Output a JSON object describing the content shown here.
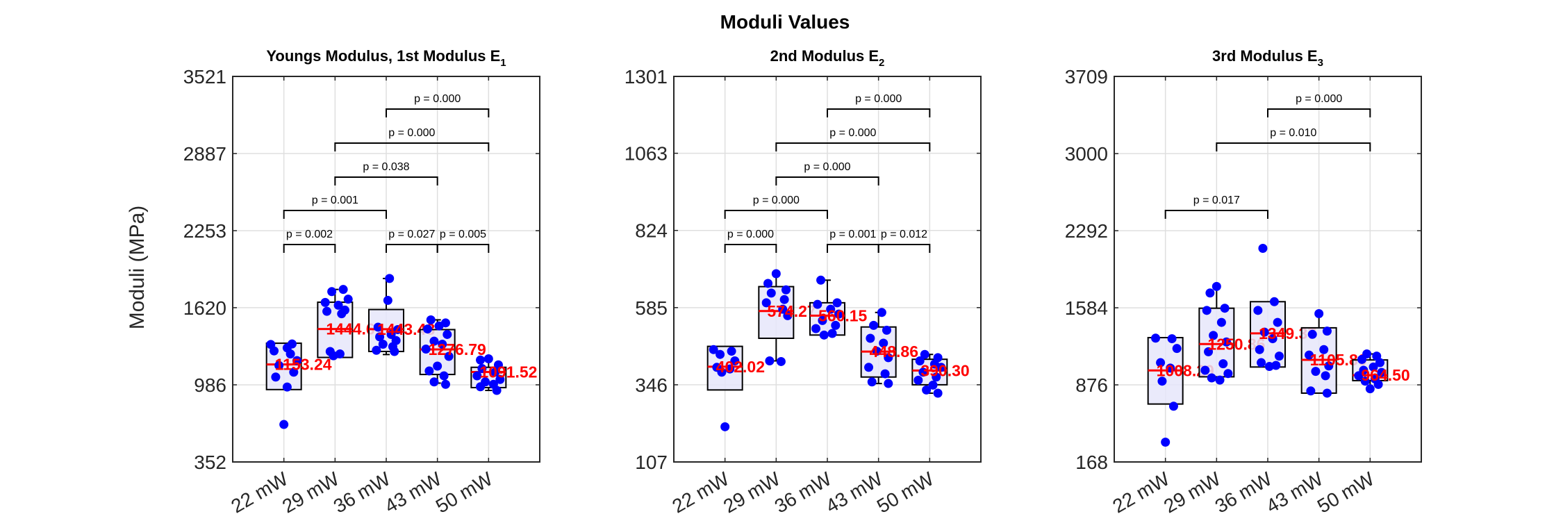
{
  "figure_title": "Moduli Values",
  "ylabel": "Moduli (MPa)",
  "chart_data": [
    {
      "type": "box",
      "title": "Youngs Modulus, 1st Modulus E",
      "title_subscript": "1",
      "ylim": [
        352,
        3521
      ],
      "yticks": [
        352,
        986,
        1620,
        2253,
        2887,
        3521
      ],
      "ytick_labels": [
        "352",
        "986",
        "1620",
        "2253",
        "2887",
        "3521"
      ],
      "categories": [
        "22 mW",
        "29 mW",
        "36 mW",
        "43 mW",
        "50 mW"
      ],
      "boxes": [
        {
          "q1": 947,
          "q3": 1328,
          "wlo": 947,
          "whi": 1328,
          "median": 1153.24,
          "label": "1153.24",
          "points": [
            [
              -0.08,
              1318
            ],
            [
              0.05,
              1322
            ],
            [
              0.02,
              1290
            ],
            [
              -0.06,
              1265
            ],
            [
              0.04,
              1240
            ],
            [
              0.08,
              1185
            ],
            [
              -0.03,
              1145
            ],
            [
              0.06,
              1090
            ],
            [
              -0.05,
              1050
            ],
            [
              0.02,
              968
            ],
            [
              0.0,
              660
            ]
          ]
        },
        {
          "q1": 1211,
          "q3": 1665,
          "wlo": 1211,
          "whi": 1770,
          "median": 1444.61,
          "label": "1444.61",
          "points": [
            [
              0.05,
              1770
            ],
            [
              -0.02,
              1752
            ],
            [
              0.08,
              1690
            ],
            [
              -0.06,
              1663
            ],
            [
              0.02,
              1640
            ],
            [
              0.06,
              1600
            ],
            [
              -0.05,
              1590
            ],
            [
              0.04,
              1570
            ],
            [
              -0.03,
              1260
            ],
            [
              0.03,
              1240
            ],
            [
              -0.01,
              1225
            ]
          ]
        },
        {
          "q1": 1260,
          "q3": 1605,
          "wlo": 1235,
          "whi": 1860,
          "median": 1443.48,
          "label": "1443.48",
          "points": [
            [
              0.02,
              1860
            ],
            [
              0.01,
              1680
            ],
            [
              -0.05,
              1460
            ],
            [
              0.07,
              1440
            ],
            [
              0.03,
              1400
            ],
            [
              -0.04,
              1380
            ],
            [
              0.06,
              1350
            ],
            [
              -0.02,
              1320
            ],
            [
              0.04,
              1300
            ],
            [
              -0.06,
              1270
            ],
            [
              0.05,
              1260
            ]
          ]
        },
        {
          "q1": 1071,
          "q3": 1440,
          "wlo": 1000,
          "whi": 1520,
          "median": 1276.79,
          "label": "1276.79",
          "points": [
            [
              -0.04,
              1520
            ],
            [
              0.05,
              1495
            ],
            [
              0.01,
              1470
            ],
            [
              -0.06,
              1445
            ],
            [
              0.06,
              1400
            ],
            [
              -0.02,
              1345
            ],
            [
              0.03,
              1320
            ],
            [
              -0.07,
              1280
            ],
            [
              0.07,
              1220
            ],
            [
              0.0,
              1140
            ],
            [
              -0.05,
              1100
            ],
            [
              0.04,
              1060
            ],
            [
              -0.02,
              1010
            ],
            [
              0.05,
              990
            ]
          ]
        },
        {
          "q1": 963,
          "q3": 1130,
          "wlo": 940,
          "whi": 1200,
          "median": 1091.52,
          "label": "1091.52",
          "points": [
            [
              0.0,
              1200
            ],
            [
              -0.05,
              1190
            ],
            [
              0.06,
              1150
            ],
            [
              -0.04,
              1120
            ],
            [
              0.04,
              1090
            ],
            [
              -0.07,
              1060
            ],
            [
              0.07,
              1030
            ],
            [
              -0.02,
              1010
            ],
            [
              0.03,
              990
            ],
            [
              -0.05,
              970
            ],
            [
              0.05,
              940
            ]
          ]
        }
      ],
      "significance": [
        {
          "from": 0,
          "to": 1,
          "level": 1,
          "label": "p = 0.002"
        },
        {
          "from": 2,
          "to": 3,
          "level": 1,
          "label": "p = 0.027"
        },
        {
          "from": 3,
          "to": 4,
          "level": 1,
          "label": "p = 0.005"
        },
        {
          "from": 0,
          "to": 2,
          "level": 2,
          "label": "p = 0.001"
        },
        {
          "from": 1,
          "to": 3,
          "level": 3,
          "label": "p = 0.038"
        },
        {
          "from": 1,
          "to": 4,
          "level": 4,
          "label": "p = 0.000"
        },
        {
          "from": 2,
          "to": 4,
          "level": 5,
          "label": "p = 0.000"
        }
      ]
    },
    {
      "type": "box",
      "title": "2nd Modulus E",
      "title_subscript": "2",
      "ylim": [
        107,
        1301
      ],
      "yticks": [
        107,
        346,
        585,
        824,
        1063,
        1301
      ],
      "ytick_labels": [
        "107",
        "346",
        "585",
        "824",
        "1063",
        "1301"
      ],
      "categories": [
        "22 mW",
        "29 mW",
        "36 mW",
        "43 mW",
        "50 mW"
      ],
      "boxes": [
        {
          "q1": 330,
          "q3": 465,
          "wlo": 330,
          "whi": 465,
          "median": 402.02,
          "label": "402.02",
          "points": [
            [
              -0.07,
              455
            ],
            [
              0.04,
              450
            ],
            [
              -0.03,
              440
            ],
            [
              0.06,
              420
            ],
            [
              -0.05,
              400
            ],
            [
              0.03,
              395
            ],
            [
              -0.02,
              385
            ],
            [
              0.0,
              216
            ]
          ]
        },
        {
          "q1": 490,
          "q3": 650,
          "wlo": 420,
          "whi": 690,
          "median": 574.27,
          "label": "574.27",
          "points": [
            [
              0.0,
              690
            ],
            [
              -0.05,
              660
            ],
            [
              0.06,
              640
            ],
            [
              -0.03,
              630
            ],
            [
              0.05,
              610
            ],
            [
              -0.06,
              600
            ],
            [
              0.04,
              580
            ],
            [
              0.07,
              560
            ],
            [
              -0.04,
              420
            ],
            [
              0.03,
              418
            ]
          ]
        },
        {
          "q1": 500,
          "q3": 600,
          "wlo": 500,
          "whi": 670,
          "median": 560.15,
          "label": "560.15",
          "points": [
            [
              -0.04,
              670
            ],
            [
              0.06,
              600
            ],
            [
              -0.06,
              595
            ],
            [
              0.02,
              580
            ],
            [
              0.07,
              565
            ],
            [
              -0.03,
              545
            ],
            [
              0.05,
              530
            ],
            [
              -0.07,
              520
            ],
            [
              0.03,
              505
            ],
            [
              -0.02,
              500
            ]
          ]
        },
        {
          "q1": 370,
          "q3": 525,
          "wlo": 350,
          "whi": 570,
          "median": 448.86,
          "label": "448.86",
          "points": [
            [
              0.02,
              570
            ],
            [
              -0.03,
              530
            ],
            [
              0.05,
              515
            ],
            [
              -0.05,
              490
            ],
            [
              0.03,
              475
            ],
            [
              -0.01,
              450
            ],
            [
              0.06,
              430
            ],
            [
              -0.06,
              400
            ],
            [
              0.04,
              380
            ],
            [
              -0.04,
              355
            ],
            [
              0.06,
              350
            ]
          ]
        },
        {
          "q1": 346,
          "q3": 425,
          "wlo": 320,
          "whi": 440,
          "median": 390.3,
          "label": "390.30",
          "points": [
            [
              -0.03,
              440
            ],
            [
              0.05,
              430
            ],
            [
              -0.06,
              420
            ],
            [
              0.03,
              410
            ],
            [
              0.07,
              400
            ],
            [
              -0.04,
              385
            ],
            [
              0.04,
              370
            ],
            [
              -0.07,
              360
            ],
            [
              0.02,
              345
            ],
            [
              -0.02,
              330
            ],
            [
              0.05,
              320
            ]
          ]
        }
      ],
      "significance": [
        {
          "from": 0,
          "to": 1,
          "level": 1,
          "label": "p = 0.000"
        },
        {
          "from": 2,
          "to": 3,
          "level": 1,
          "label": "p = 0.001"
        },
        {
          "from": 3,
          "to": 4,
          "level": 1,
          "label": "p = 0.012"
        },
        {
          "from": 0,
          "to": 2,
          "level": 2,
          "label": "p = 0.000"
        },
        {
          "from": 1,
          "to": 3,
          "level": 3,
          "label": "p = 0.000"
        },
        {
          "from": 1,
          "to": 4,
          "level": 4,
          "label": "p = 0.000"
        },
        {
          "from": 2,
          "to": 4,
          "level": 5,
          "label": "p = 0.000"
        }
      ]
    },
    {
      "type": "box",
      "title": "3rd Modulus E",
      "title_subscript": "3",
      "ylim": [
        168,
        3709
      ],
      "yticks": [
        168,
        876,
        1584,
        2292,
        3000,
        3709
      ],
      "ytick_labels": [
        "168",
        "876",
        "1584",
        "2292",
        "3000",
        "3709"
      ],
      "categories": [
        "22 mW",
        "29 mW",
        "36 mW",
        "43 mW",
        "50 mW"
      ],
      "boxes": [
        {
          "q1": 700,
          "q3": 1310,
          "wlo": 700,
          "whi": 1310,
          "median": 1008.29,
          "label": "1008.29",
          "points": [
            [
              -0.06,
              1305
            ],
            [
              0.04,
              1300
            ],
            [
              0.07,
              1210
            ],
            [
              -0.03,
              1080
            ],
            [
              0.03,
              1030
            ],
            [
              -0.02,
              910
            ],
            [
              0.05,
              680
            ],
            [
              0.0,
              350
            ]
          ]
        },
        {
          "q1": 950,
          "q3": 1580,
          "wlo": 920,
          "whi": 1780,
          "median": 1250.86,
          "label": "1250.86",
          "points": [
            [
              0.0,
              1780
            ],
            [
              -0.04,
              1720
            ],
            [
              0.05,
              1580
            ],
            [
              -0.06,
              1560
            ],
            [
              0.03,
              1450
            ],
            [
              -0.02,
              1330
            ],
            [
              0.06,
              1270
            ],
            [
              -0.05,
              1180
            ],
            [
              0.04,
              1070
            ],
            [
              -0.07,
              1010
            ],
            [
              0.07,
              980
            ],
            [
              -0.03,
              940
            ],
            [
              0.02,
              920
            ]
          ]
        },
        {
          "q1": 1040,
          "q3": 1640,
          "wlo": 1040,
          "whi": 1640,
          "median": 1349.37,
          "label": "1349.37",
          "points": [
            [
              -0.03,
              2130
            ],
            [
              0.04,
              1640
            ],
            [
              -0.06,
              1560
            ],
            [
              0.06,
              1450
            ],
            [
              -0.02,
              1360
            ],
            [
              0.03,
              1300
            ],
            [
              -0.05,
              1200
            ],
            [
              0.07,
              1140
            ],
            [
              -0.04,
              1080
            ],
            [
              0.05,
              1055
            ],
            [
              0.01,
              1045
            ]
          ]
        },
        {
          "q1": 800,
          "q3": 1400,
          "wlo": 800,
          "whi": 1530,
          "median": 1105.86,
          "label": "1105.86",
          "points": [
            [
              0.0,
              1530
            ],
            [
              0.05,
              1370
            ],
            [
              -0.04,
              1340
            ],
            [
              0.03,
              1200
            ],
            [
              -0.06,
              1150
            ],
            [
              0.06,
              1050
            ],
            [
              -0.02,
              1000
            ],
            [
              0.04,
              960
            ],
            [
              -0.05,
              820
            ],
            [
              0.05,
              800
            ]
          ]
        },
        {
          "q1": 915,
          "q3": 1105,
          "wlo": 820,
          "whi": 1160,
          "median": 964.5,
          "label": "964.50",
          "points": [
            [
              -0.02,
              1160
            ],
            [
              0.04,
              1140
            ],
            [
              -0.05,
              1110
            ],
            [
              0.06,
              1080
            ],
            [
              0.02,
              1040
            ],
            [
              -0.04,
              1010
            ],
            [
              0.07,
              990
            ],
            [
              -0.07,
              960
            ],
            [
              0.03,
              930
            ],
            [
              -0.03,
              910
            ],
            [
              0.05,
              880
            ],
            [
              0.0,
              840
            ]
          ]
        }
      ],
      "significance": [
        {
          "from": 0,
          "to": 2,
          "level": 2,
          "label": "p = 0.017"
        },
        {
          "from": 1,
          "to": 4,
          "level": 4,
          "label": "p = 0.010"
        },
        {
          "from": 2,
          "to": 4,
          "level": 5,
          "label": "p = 0.000"
        }
      ]
    }
  ]
}
